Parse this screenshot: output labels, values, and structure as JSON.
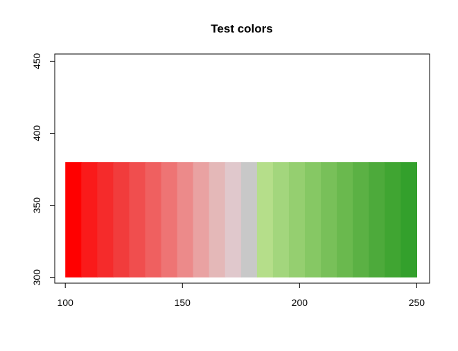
{
  "chart_data": {
    "type": "bar",
    "title": "Test colors",
    "xlabel": "",
    "ylabel": "",
    "xlim": [
      95.5,
      255.5
    ],
    "ylim": [
      296,
      455
    ],
    "x_ticks": [
      100,
      150,
      200,
      250
    ],
    "y_ticks": [
      300,
      350,
      400,
      450
    ],
    "grid": false,
    "legend": "none",
    "bar_bottom": 300,
    "bar_top": 380,
    "x_start": 100,
    "x_end": 250,
    "colors": [
      "#FF0000",
      "#FA1A1A",
      "#F52B2B",
      "#F13C3C",
      "#F04E4E",
      "#EF6060",
      "#EE7474",
      "#EC8A8A",
      "#E9A2A2",
      "#E4B8B8",
      "#E0C8CC",
      "#C8C8C8",
      "#B5DE8A",
      "#A3D67D",
      "#95CF70",
      "#86C864",
      "#78C059",
      "#6AB94E",
      "#5BB144",
      "#4DAA3B",
      "#40A532",
      "#33A02C"
    ]
  }
}
